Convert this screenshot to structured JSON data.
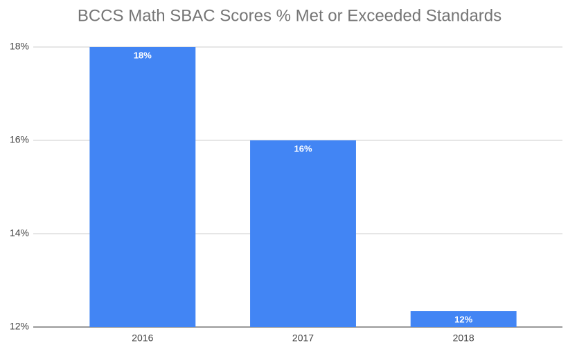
{
  "chart_data": {
    "type": "bar",
    "title": "BCCS Math SBAC Scores % Met or Exceeded Standards",
    "categories": [
      "2016",
      "2017",
      "2018"
    ],
    "values": [
      18,
      16,
      12.34
    ],
    "value_labels": [
      "18%",
      "16%",
      "12%"
    ],
    "color": "#4285f4",
    "ylim": [
      12,
      18
    ],
    "yticks": [
      {
        "value": 12,
        "label": "12%"
      },
      {
        "value": 14,
        "label": "14%"
      },
      {
        "value": 16,
        "label": "16%"
      },
      {
        "value": 18,
        "label": "18%"
      }
    ],
    "grid": true
  }
}
